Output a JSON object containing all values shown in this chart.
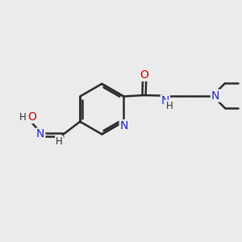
{
  "background_color": "#ebebeb",
  "bond_color": "#2a2a2a",
  "bond_width": 1.8,
  "atom_colors": {
    "N": "#2222cc",
    "O": "#cc0000",
    "H": "#2a2a2a"
  },
  "figsize": [
    3.0,
    3.0
  ],
  "dpi": 100
}
